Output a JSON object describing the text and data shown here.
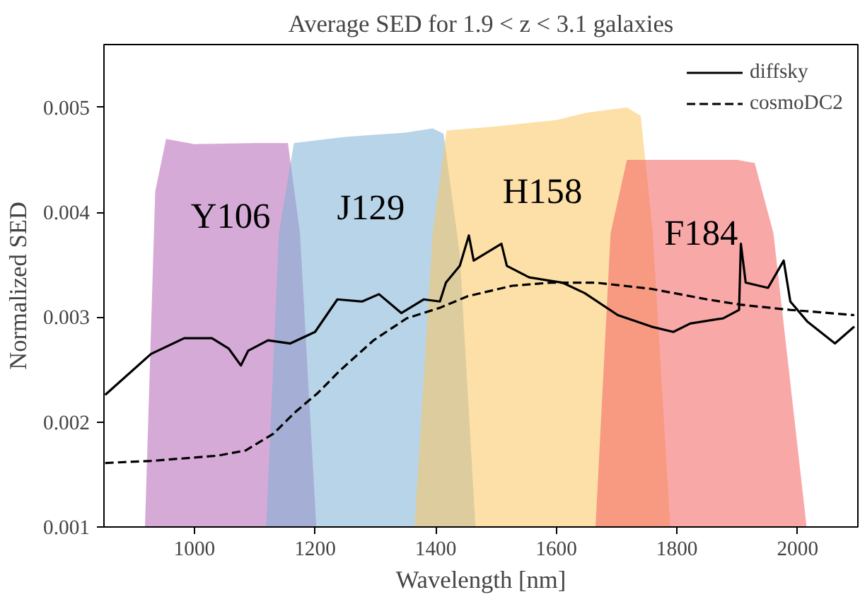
{
  "chart_data": {
    "type": "line",
    "title": "Average SED for 1.9 < z < 3.1 galaxies",
    "xlabel": "Wavelength [nm]",
    "ylabel": "Normalized SED",
    "xlim": [
      850,
      2100
    ],
    "ylim": [
      0.001,
      0.0056
    ],
    "xticks": [
      1000,
      1200,
      1400,
      1600,
      1800,
      2000
    ],
    "yticks": [
      0.001,
      0.002,
      0.003,
      0.004,
      0.005
    ],
    "grid": false,
    "legend": "top right",
    "marker": "none",
    "series": [
      {
        "type": "area",
        "name": "Y106",
        "color": "#b565b5",
        "x": [
          918,
          935,
          953,
          1000,
          1100,
          1155,
          1175,
          1202
        ],
        "values": [
          0.001,
          0.0042,
          0.0047,
          0.00465,
          0.00466,
          0.00466,
          0.0038,
          0.001
        ]
      },
      {
        "type": "area",
        "name": "J129",
        "color": "#7eb1d5",
        "x": [
          1119,
          1140,
          1165,
          1250,
          1350,
          1395,
          1413,
          1440,
          1466
        ],
        "values": [
          0.001,
          0.0038,
          0.00466,
          0.00472,
          0.00476,
          0.0048,
          0.00475,
          0.0036,
          0.001
        ]
      },
      {
        "type": "area",
        "name": "H158",
        "color": "#fcc761",
        "x": [
          1365,
          1395,
          1418,
          1500,
          1600,
          1650,
          1717,
          1740,
          1760,
          1789
        ],
        "values": [
          0.001,
          0.0038,
          0.00478,
          0.00482,
          0.00488,
          0.00495,
          0.005,
          0.00492,
          0.0038,
          0.001
        ]
      },
      {
        "type": "area",
        "name": "F184",
        "color": "#f46161",
        "x": [
          1665,
          1690,
          1717,
          1800,
          1900,
          1929,
          1960,
          2015
        ],
        "values": [
          0.001,
          0.0038,
          0.0045,
          0.0045,
          0.0045,
          0.00447,
          0.0038,
          0.001
        ]
      },
      {
        "name": "diffsky",
        "color": "#000000",
        "line_style": "solid",
        "x": [
          852,
          928,
          983,
          1029,
          1057,
          1077,
          1089,
          1122,
          1159,
          1200,
          1237,
          1278,
          1306,
          1343,
          1380,
          1407,
          1417,
          1440,
          1455,
          1463,
          1509,
          1518,
          1555,
          1610,
          1647,
          1702,
          1758,
          1794,
          1822,
          1877,
          1903,
          1906,
          1914,
          1951,
          1977,
          1988,
          2016,
          2062,
          2094
        ],
        "values": [
          0.00226,
          0.00265,
          0.0028,
          0.0028,
          0.0027,
          0.00254,
          0.00268,
          0.00278,
          0.00275,
          0.00286,
          0.00317,
          0.00315,
          0.00322,
          0.00304,
          0.00317,
          0.00315,
          0.00333,
          0.00349,
          0.00378,
          0.00354,
          0.0037,
          0.00349,
          0.00338,
          0.00333,
          0.00323,
          0.00302,
          0.00291,
          0.00286,
          0.00294,
          0.00299,
          0.00307,
          0.0037,
          0.00333,
          0.00328,
          0.00354,
          0.00315,
          0.00296,
          0.00275,
          0.00291
        ]
      },
      {
        "name": "cosmoDC2",
        "color": "#000000",
        "line_style": "dashed",
        "x": [
          852,
          928,
          1039,
          1085,
          1131,
          1168,
          1205,
          1241,
          1297,
          1352,
          1407,
          1453,
          1527,
          1592,
          1665,
          1758,
          1850,
          1905,
          1988,
          2094
        ],
        "values": [
          0.00161,
          0.00163,
          0.00168,
          0.00173,
          0.00189,
          0.0021,
          0.00228,
          0.00249,
          0.00278,
          0.00299,
          0.00309,
          0.0032,
          0.0033,
          0.00333,
          0.00333,
          0.00327,
          0.00317,
          0.00312,
          0.00307,
          0.00302
        ]
      }
    ]
  }
}
